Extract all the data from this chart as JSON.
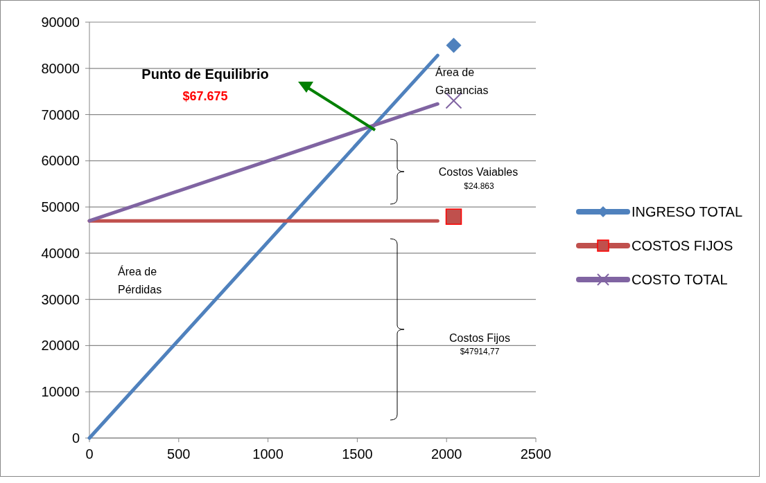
{
  "chart_data": {
    "type": "line",
    "xlim": [
      0,
      2500
    ],
    "xticks": [
      0,
      500,
      1000,
      1500,
      2000,
      2500
    ],
    "ylim": [
      0,
      90000
    ],
    "yticks": [
      0,
      10000,
      20000,
      30000,
      40000,
      50000,
      60000,
      70000,
      80000,
      90000
    ],
    "grid": "y",
    "legend": "right",
    "line_style": "solid",
    "series": [
      {
        "name": "INGRESO TOTAL",
        "color": "#4f81bd",
        "x": [
          0,
          1950
        ],
        "values": [
          0,
          82800
        ]
      },
      {
        "name": "COSTOS FIJOS",
        "color": "#c0504d",
        "x": [
          0,
          1950
        ],
        "values": [
          47000,
          47000
        ]
      },
      {
        "name": "COSTO TOTAL",
        "color": "#8064a2",
        "x": [
          0,
          1950
        ],
        "values": [
          47000,
          72300
        ]
      },
      {
        "type": "scatter",
        "color": "#4f81bd",
        "x": [
          2040
        ],
        "values": [
          85000
        ],
        "marker": "diamond"
      },
      {
        "type": "scatter",
        "color": "#c0504d",
        "x": [
          2040
        ],
        "values": [
          47900
        ],
        "marker": "square"
      },
      {
        "type": "scatter",
        "color": "#8064a2",
        "x": [
          2040
        ],
        "values": [
          73000
        ],
        "marker": "cross"
      }
    ],
    "annotations": [
      "Punto de Equilibrio",
      "$67.675",
      "Área de Ganancias",
      "Costos Vaiables",
      "$24.863",
      "Área de Pérdidas",
      "Costos Fijos",
      "$47914,77"
    ]
  }
}
